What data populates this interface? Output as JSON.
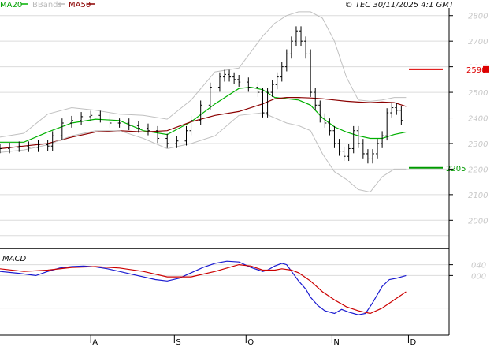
{
  "header": {
    "ma20_label": "MA20",
    "bbands_label": "BBands",
    "ma50_label": "MA50",
    "copyright": "© TEC 30/11/2025 4:1 GMT"
  },
  "macd_label": "MACD",
  "colors": {
    "price": "#000000",
    "ma20": "#00b000",
    "ma50": "#8b0000",
    "bbands": "#c0c0c0",
    "resistance": "#dd0000",
    "support": "#009900",
    "macd": "#1a1ad0",
    "signal": "#cc0000",
    "grid": "#dcdcdc",
    "axis": "#000000",
    "tick_text": "#c8c8c8"
  },
  "levels": [
    {
      "name": "resistance",
      "value": 2590,
      "label": "2590"
    },
    {
      "name": "support",
      "value": 2205,
      "label": "2205"
    }
  ],
  "chart_data": [
    {
      "type": "line",
      "panel": "price",
      "y_ticks": [
        2000,
        2100,
        2200,
        2300,
        2400,
        2500,
        2600,
        2700,
        2800
      ],
      "y_tick_labels": [
        "2000",
        "2100",
        "2200",
        "2300",
        "2400",
        "2500",
        "2600",
        "2700",
        "2800"
      ],
      "ylim": [
        1890,
        2830
      ],
      "x_ticks": [
        {
          "label": "A",
          "x": 38
        },
        {
          "label": "S",
          "x": 73
        },
        {
          "label": "O",
          "x": 103
        },
        {
          "label": "N",
          "x": 139
        },
        {
          "label": "D",
          "x": 171
        }
      ],
      "xlim": [
        0,
        188
      ],
      "grid": true,
      "legend": "top-left",
      "series": [
        {
          "name": "MA20",
          "x": [
            0,
            10,
            20,
            30,
            40,
            50,
            60,
            70,
            80,
            90,
            100,
            105,
            110,
            115,
            120,
            125,
            130,
            135,
            140,
            145,
            150,
            155,
            160,
            165,
            170
          ],
          "values": [
            2305,
            2305,
            2345,
            2380,
            2395,
            2390,
            2350,
            2335,
            2385,
            2455,
            2515,
            2520,
            2510,
            2480,
            2475,
            2470,
            2450,
            2400,
            2365,
            2345,
            2330,
            2320,
            2320,
            2335,
            2345
          ]
        },
        {
          "name": "MA50",
          "x": [
            0,
            10,
            20,
            30,
            40,
            50,
            60,
            70,
            80,
            90,
            100,
            110,
            115,
            120,
            125,
            130,
            135,
            140,
            145,
            150,
            155,
            160,
            165,
            170
          ],
          "values": [
            2280,
            2290,
            2300,
            2325,
            2345,
            2350,
            2345,
            2350,
            2385,
            2410,
            2425,
            2455,
            2475,
            2480,
            2480,
            2478,
            2475,
            2470,
            2465,
            2462,
            2460,
            2462,
            2460,
            2445
          ]
        },
        {
          "name": "BB upper",
          "x": [
            0,
            10,
            20,
            30,
            40,
            50,
            60,
            70,
            80,
            90,
            100,
            110,
            115,
            120,
            125,
            130,
            135,
            140,
            145,
            150,
            155,
            160,
            165,
            170
          ],
          "values": [
            2325,
            2340,
            2415,
            2440,
            2430,
            2415,
            2410,
            2395,
            2470,
            2580,
            2595,
            2720,
            2770,
            2800,
            2815,
            2815,
            2790,
            2700,
            2560,
            2470,
            2465,
            2470,
            2480,
            2480
          ]
        },
        {
          "name": "BB lower",
          "x": [
            0,
            10,
            20,
            30,
            40,
            50,
            60,
            70,
            80,
            90,
            100,
            110,
            115,
            120,
            125,
            130,
            135,
            140,
            145,
            150,
            155,
            160,
            165,
            170
          ],
          "values": [
            2265,
            2275,
            2295,
            2330,
            2350,
            2350,
            2320,
            2280,
            2300,
            2330,
            2410,
            2420,
            2400,
            2380,
            2370,
            2350,
            2260,
            2190,
            2160,
            2120,
            2110,
            2170,
            2200,
            2200
          ]
        },
        {
          "name": "Price",
          "x": [
            0,
            4,
            8,
            12,
            16,
            20,
            22,
            26,
            30,
            34,
            38,
            42,
            46,
            50,
            54,
            58,
            62,
            66,
            70,
            74,
            78,
            80,
            84,
            88,
            92,
            94,
            96,
            98,
            100,
            104,
            108,
            110,
            112,
            114,
            116,
            118,
            120,
            122,
            124,
            126,
            128,
            130,
            132,
            134,
            136,
            138,
            140,
            142,
            144,
            146,
            148,
            150,
            152,
            154,
            156,
            158,
            160,
            162,
            164,
            166,
            168
          ],
          "values": [
            2280,
            2285,
            2290,
            2285,
            2295,
            2290,
            2330,
            2380,
            2390,
            2405,
            2410,
            2400,
            2380,
            2380,
            2370,
            2360,
            2350,
            2320,
            2300,
            2310,
            2350,
            2390,
            2450,
            2520,
            2560,
            2570,
            2560,
            2550,
            2540,
            2520,
            2500,
            2420,
            2500,
            2530,
            2560,
            2600,
            2650,
            2700,
            2740,
            2700,
            2650,
            2500,
            2450,
            2400,
            2380,
            2350,
            2300,
            2270,
            2250,
            2280,
            2350,
            2300,
            2260,
            2240,
            2260,
            2300,
            2330,
            2420,
            2440,
            2430,
            2390
          ]
        },
        {
          "name": "MACD",
          "x": [
            0,
            8,
            15,
            20,
            25,
            30,
            35,
            40,
            45,
            50,
            55,
            60,
            65,
            70,
            75,
            80,
            85,
            90,
            95,
            100,
            105,
            110,
            112,
            115,
            118,
            120,
            125,
            128,
            130,
            133,
            136,
            140,
            143,
            146,
            150,
            153,
            156,
            160,
            163,
            166,
            170
          ],
          "values": [
            15,
            8,
            0,
            15,
            28,
            33,
            35,
            32,
            25,
            15,
            5,
            -5,
            -15,
            -20,
            -10,
            10,
            30,
            45,
            53,
            50,
            30,
            15,
            20,
            35,
            45,
            40,
            -20,
            -50,
            -80,
            -110,
            -130,
            -140,
            -125,
            -135,
            -145,
            -140,
            -100,
            -40,
            -15,
            -10,
            0
          ]
        },
        {
          "name": "Signal",
          "x": [
            0,
            10,
            20,
            30,
            40,
            50,
            60,
            70,
            75,
            80,
            90,
            100,
            105,
            110,
            115,
            118,
            122,
            125,
            130,
            135,
            140,
            145,
            150,
            155,
            160,
            165,
            170
          ],
          "values": [
            25,
            15,
            20,
            30,
            33,
            28,
            15,
            -5,
            -5,
            -5,
            15,
            40,
            35,
            20,
            20,
            25,
            20,
            10,
            -20,
            -60,
            -90,
            -115,
            -130,
            -140,
            -120,
            -90,
            -60
          ]
        }
      ]
    },
    {
      "type": "line",
      "panel": "macd",
      "title": "MACD",
      "y_ticks": [
        0,
        40
      ],
      "y_tick_labels": [
        "000",
        "040"
      ],
      "ylim": [
        -220,
        100
      ]
    }
  ]
}
